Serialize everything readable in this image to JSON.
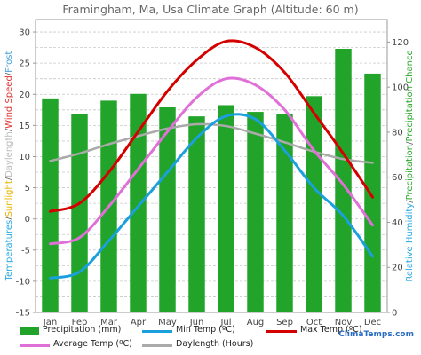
{
  "title": "Framingham, Ma, Usa Climate Graph (Altitude: 60 m)",
  "brand": "ClimaTemps.com",
  "chart_data": {
    "type": "bar",
    "categories": [
      "Jan",
      "Feb",
      "Mar",
      "Apr",
      "May",
      "Jun",
      "Jul",
      "Aug",
      "Sep",
      "Oct",
      "Nov",
      "Dec"
    ],
    "left_axis": {
      "ylim": [
        -15,
        32
      ],
      "ticks": [
        -15,
        -10,
        -5,
        0,
        5,
        10,
        15,
        20,
        25,
        30
      ],
      "label_parts": [
        {
          "text": "Temperatures",
          "color": "#29a8e0"
        },
        {
          "text": "/",
          "color": "#666666"
        },
        {
          "text": "Sunlight",
          "color": "#e8b400"
        },
        {
          "text": "/",
          "color": "#666666"
        },
        {
          "text": "Daylength",
          "color": "#bbbbbb"
        },
        {
          "text": "/",
          "color": "#666666"
        },
        {
          "text": "Wind Speed",
          "color": "#e03030"
        },
        {
          "text": "/",
          "color": "#666666"
        },
        {
          "text": "Frost",
          "color": "#4aa0d8"
        }
      ]
    },
    "right_axis": {
      "ylim": [
        0,
        130
      ],
      "ticks": [
        0,
        20,
        40,
        60,
        80,
        100,
        120
      ],
      "label_parts": [
        {
          "text": "Relative Humidity",
          "color": "#29a8e0"
        },
        {
          "text": "/",
          "color": "#666666"
        },
        {
          "text": "Precipitation",
          "color": "#2aa62a"
        },
        {
          "text": "/",
          "color": "#666666"
        },
        {
          "text": "Precipitation Chance",
          "color": "#2aa62a"
        }
      ]
    },
    "grid": true,
    "series": [
      {
        "name": "Precipitation (mm)",
        "kind": "bar",
        "axis": "right",
        "color": "#22a42a",
        "values": [
          95,
          88,
          94,
          97,
          91,
          87,
          92,
          89,
          88,
          96,
          117,
          106
        ]
      },
      {
        "name": "Min Temp (ºC)",
        "kind": "line",
        "axis": "left",
        "color": "#1aa0dc",
        "values": [
          -9.5,
          -8.5,
          -3.5,
          2,
          7.5,
          13,
          16.5,
          16,
          11,
          5,
          0.5,
          -6
        ]
      },
      {
        "name": "Max Temp (ºC)",
        "kind": "line",
        "axis": "left",
        "color": "#d40000",
        "values": [
          1.2,
          2.5,
          7.5,
          14,
          20.5,
          25.5,
          28.5,
          27.5,
          23.5,
          17,
          10.5,
          3.5
        ]
      },
      {
        "name": "Average Temp (ºC)",
        "kind": "line",
        "axis": "left",
        "color": "#e070d8",
        "values": [
          -4,
          -3,
          2,
          8,
          14,
          19.5,
          22.5,
          21.5,
          17.5,
          11,
          5.5,
          -1
        ]
      },
      {
        "name": "Daylength (Hours)",
        "kind": "line",
        "axis": "left",
        "color": "#aaaaaa",
        "values": [
          9.3,
          10.5,
          12,
          13.3,
          14.5,
          15.2,
          14.9,
          13.7,
          12.3,
          10.8,
          9.6,
          9
        ]
      }
    ]
  },
  "legend": [
    {
      "label": "Precipitation (mm)",
      "swatch": "bar",
      "color": "#22a42a"
    },
    {
      "label": "Min Temp (ºC)",
      "swatch": "line",
      "color": "#1aa0dc"
    },
    {
      "label": "Max Temp (ºC)",
      "swatch": "line",
      "color": "#d40000"
    },
    {
      "label": "Average Temp (ºC)",
      "swatch": "line",
      "color": "#e070d8"
    },
    {
      "label": "Daylength (Hours)",
      "swatch": "line",
      "color": "#aaaaaa"
    }
  ]
}
